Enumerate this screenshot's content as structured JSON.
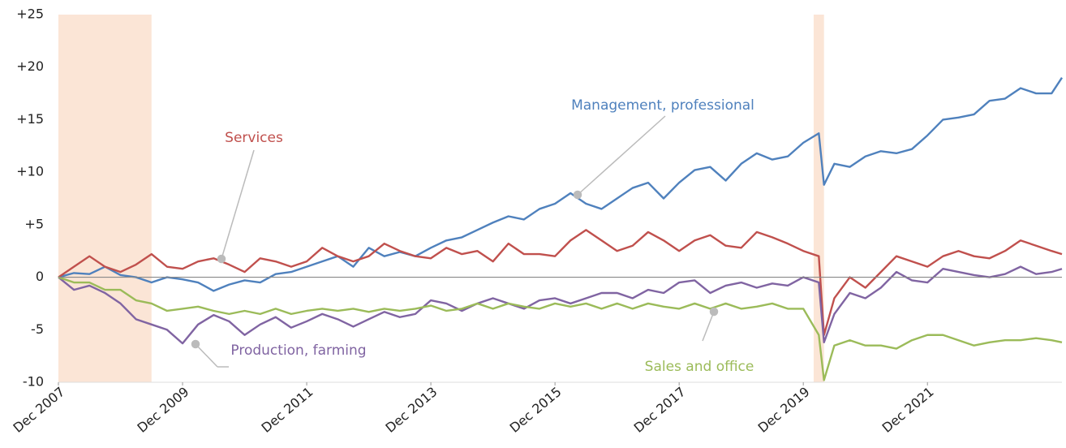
{
  "chart_data": {
    "type": "line",
    "x": [
      "2007-12",
      "2008-03",
      "2008-06",
      "2008-09",
      "2008-12",
      "2009-03",
      "2009-06",
      "2009-09",
      "2009-12",
      "2010-03",
      "2010-06",
      "2010-09",
      "2010-12",
      "2011-03",
      "2011-06",
      "2011-09",
      "2011-12",
      "2012-03",
      "2012-06",
      "2012-09",
      "2012-12",
      "2013-03",
      "2013-06",
      "2013-09",
      "2013-12",
      "2014-03",
      "2014-06",
      "2014-09",
      "2014-12",
      "2015-03",
      "2015-06",
      "2015-09",
      "2015-12",
      "2016-03",
      "2016-06",
      "2016-09",
      "2016-12",
      "2017-03",
      "2017-06",
      "2017-09",
      "2017-12",
      "2018-03",
      "2018-06",
      "2018-09",
      "2018-12",
      "2019-03",
      "2019-06",
      "2019-09",
      "2019-12",
      "2020-03",
      "2020-04",
      "2020-06",
      "2020-09",
      "2020-12",
      "2021-03",
      "2021-06",
      "2021-09",
      "2021-12",
      "2022-03",
      "2022-06",
      "2022-09",
      "2022-12",
      "2023-03",
      "2023-06",
      "2023-09",
      "2023-12",
      "2024-02"
    ],
    "series": [
      {
        "name": "Management, professional",
        "color": "#4f81bd",
        "values": [
          0,
          0.4,
          0.3,
          1,
          0.2,
          0,
          -0.5,
          0,
          -0.2,
          -0.5,
          -1.3,
          -0.7,
          -0.3,
          -0.5,
          0.3,
          0.5,
          1.0,
          1.5,
          2.0,
          1.0,
          2.8,
          2.0,
          2.4,
          2.0,
          2.8,
          3.5,
          3.8,
          4.5,
          5.2,
          5.8,
          5.5,
          6.5,
          7.0,
          8.0,
          7.0,
          6.5,
          7.5,
          8.5,
          9.0,
          7.5,
          9.0,
          10.2,
          10.5,
          9.2,
          10.8,
          11.8,
          11.2,
          11.5,
          12.8,
          13.7,
          8.8,
          10.8,
          10.5,
          11.5,
          12.0,
          11.8,
          12.2,
          13.5,
          15.0,
          15.2,
          15.5,
          16.8,
          17.0,
          18.0,
          17.5,
          17.5,
          19.0
        ]
      },
      {
        "name": "Services",
        "color": "#c0504d",
        "values": [
          0,
          1.0,
          2.0,
          1.0,
          0.5,
          1.2,
          2.2,
          1.0,
          0.8,
          1.5,
          1.8,
          1.2,
          0.5,
          1.8,
          1.5,
          1.0,
          1.5,
          2.8,
          2.0,
          1.5,
          2.0,
          3.2,
          2.5,
          2.0,
          1.8,
          2.8,
          2.2,
          2.5,
          1.5,
          3.2,
          2.2,
          2.2,
          2.0,
          3.5,
          4.5,
          3.5,
          2.5,
          3.0,
          4.3,
          3.5,
          2.5,
          3.5,
          4.0,
          3.0,
          2.8,
          4.3,
          3.8,
          3.2,
          2.5,
          2.0,
          -5.5,
          -2.0,
          0.0,
          -1.0,
          0.5,
          2.0,
          1.5,
          1.0,
          2.0,
          2.5,
          2.0,
          1.8,
          2.5,
          3.5,
          3.0,
          2.5,
          2.2
        ]
      },
      {
        "name": "Production, farming",
        "color": "#8064a2",
        "values": [
          0,
          -1.2,
          -0.8,
          -1.5,
          -2.5,
          -4.0,
          -4.5,
          -5.0,
          -6.3,
          -4.5,
          -3.6,
          -4.2,
          -5.5,
          -4.5,
          -3.8,
          -4.8,
          -4.2,
          -3.5,
          -4.0,
          -4.7,
          -4.0,
          -3.3,
          -3.8,
          -3.5,
          -2.2,
          -2.5,
          -3.2,
          -2.5,
          -2.0,
          -2.5,
          -3.0,
          -2.2,
          -2.0,
          -2.5,
          -2.0,
          -1.5,
          -1.5,
          -2.0,
          -1.2,
          -1.5,
          -0.5,
          -0.3,
          -1.5,
          -0.8,
          -0.5,
          -1.0,
          -0.6,
          -0.8,
          0.0,
          -0.5,
          -6.2,
          -3.5,
          -1.5,
          -2.0,
          -1.0,
          0.5,
          -0.3,
          -0.5,
          0.8,
          0.5,
          0.2,
          0.0,
          0.3,
          1.0,
          0.3,
          0.5,
          0.8
        ]
      },
      {
        "name": "Sales and office",
        "color": "#9bbb59",
        "values": [
          0,
          -0.5,
          -0.5,
          -1.2,
          -1.2,
          -2.2,
          -2.5,
          -3.2,
          -3.0,
          -2.8,
          -3.2,
          -3.5,
          -3.2,
          -3.5,
          -3.0,
          -3.5,
          -3.2,
          -3.0,
          -3.2,
          -3.0,
          -3.3,
          -3.0,
          -3.2,
          -3.0,
          -2.7,
          -3.2,
          -3.0,
          -2.5,
          -3.0,
          -2.5,
          -2.8,
          -3.0,
          -2.5,
          -2.8,
          -2.5,
          -3.0,
          -2.5,
          -3.0,
          -2.5,
          -2.8,
          -3.0,
          -2.5,
          -3.0,
          -2.5,
          -3.0,
          -2.8,
          -2.5,
          -3.0,
          -3.0,
          -5.5,
          -9.8,
          -6.5,
          -6.0,
          -6.5,
          -6.5,
          -6.8,
          -6.0,
          -5.5,
          -5.5,
          -6.0,
          -6.5,
          -6.2,
          -6.0,
          -6.0,
          -5.8,
          -6.0,
          -6.2
        ]
      }
    ],
    "ylim": [
      -10,
      25
    ],
    "yticks": [
      {
        "value": 25,
        "label": "+25"
      },
      {
        "value": 20,
        "label": "+20"
      },
      {
        "value": 15,
        "label": "+15"
      },
      {
        "value": 10,
        "label": "+10"
      },
      {
        "value": 5,
        "label": "+5"
      },
      0,
      -5,
      -10
    ],
    "xlim": [
      "2007-12",
      "2024-02"
    ],
    "xticks": [
      {
        "value": "2007-12",
        "label": "Dec 2007"
      },
      {
        "value": "2009-12",
        "label": "Dec 2009"
      },
      {
        "value": "2011-12",
        "label": "Dec 2011"
      },
      {
        "value": "2013-12",
        "label": "Dec 2013"
      },
      {
        "value": "2015-12",
        "label": "Dec 2015"
      },
      {
        "value": "2017-12",
        "label": "Dec 2017"
      },
      {
        "value": "2019-12",
        "label": "Dec 2019"
      },
      {
        "value": "2021-12",
        "label": "Dec 2021"
      }
    ],
    "shaded": [
      [
        "2007-12",
        "2009-06"
      ],
      [
        "2020-02",
        "2020-04"
      ]
    ],
    "shade_color": "#fbe5d6"
  }
}
